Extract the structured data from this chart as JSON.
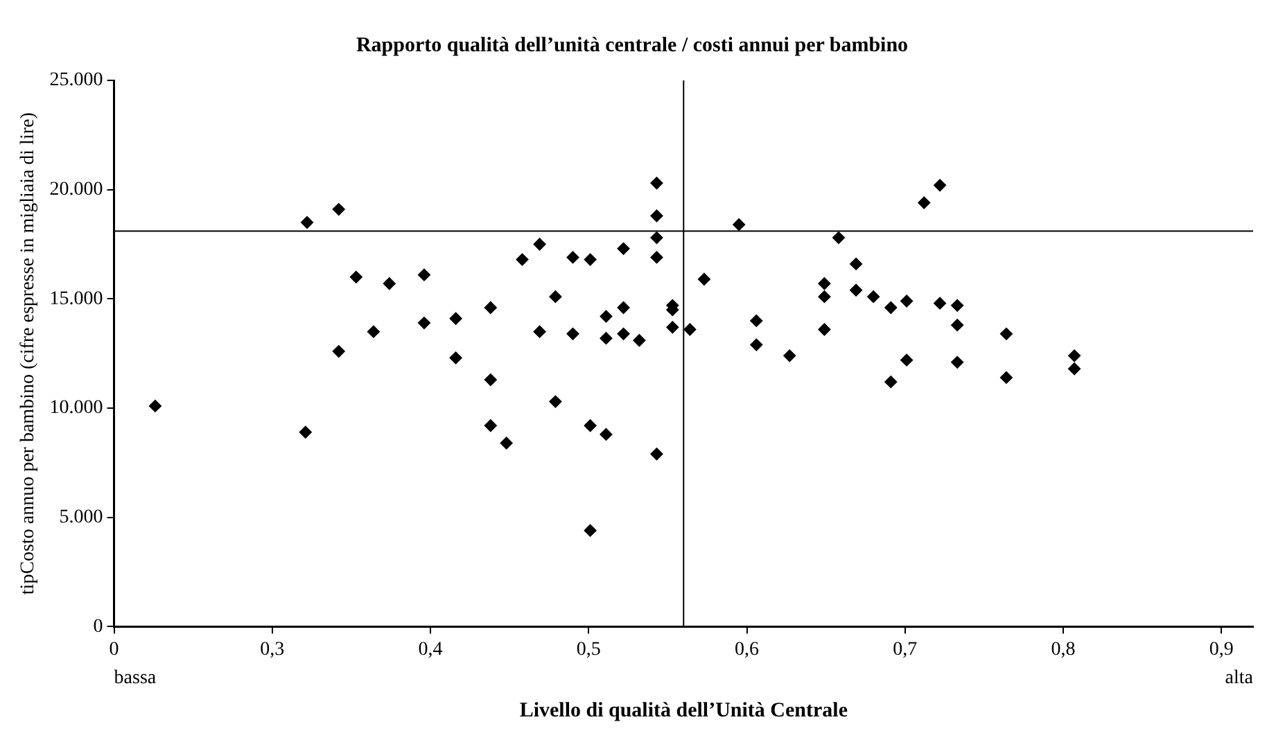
{
  "chart_data": {
    "type": "scatter",
    "title": "Rapporto qualità dell’unità centrale / costi annui per bambino",
    "xlabel": "Livello di qualità dell’Unità Centrale",
    "ylabel": "tipCosto annuo per bambino (cifre espresse in migliaia di lire)",
    "annotations": [
      "bassa",
      "alta"
    ],
    "xlim": [
      0.2,
      0.92
    ],
    "xticks": [
      {
        "value": 0.2,
        "label": "0"
      },
      {
        "value": 0.3,
        "label": "0,3"
      },
      {
        "value": 0.4,
        "label": "0,4"
      },
      {
        "value": 0.5,
        "label": "0,5"
      },
      {
        "value": 0.6,
        "label": "0,6"
      },
      {
        "value": 0.7,
        "label": "0,7"
      },
      {
        "value": 0.8,
        "label": "0,8"
      },
      {
        "value": 0.9,
        "label": "0,9"
      }
    ],
    "ylim": [
      0,
      25000
    ],
    "yticks": [
      0,
      {
        "value": 5000,
        "label": "5.000"
      },
      {
        "value": 10000,
        "label": "10.000"
      },
      {
        "value": 15000,
        "label": "15.000"
      },
      {
        "value": 20000,
        "label": "20.000"
      },
      {
        "value": 25000,
        "label": "25.000"
      }
    ],
    "grid": false,
    "legend": false,
    "marker": "diamond",
    "ref_lines": [
      {
        "axis": "y",
        "value": 18100,
        "color": "#000000"
      },
      {
        "axis": "x",
        "value": 0.56,
        "color": "#000000"
      }
    ],
    "series": [
      {
        "color": "#000000",
        "x": [
          0.226,
          0.322,
          0.342,
          0.321,
          0.342,
          0.353,
          0.364,
          0.374,
          0.396,
          0.396,
          0.416,
          0.416,
          0.438,
          0.438,
          0.438,
          0.448,
          0.458,
          0.469,
          0.469,
          0.479,
          0.479,
          0.49,
          0.49,
          0.501,
          0.501,
          0.501,
          0.511,
          0.511,
          0.511,
          0.522,
          0.522,
          0.522,
          0.532,
          0.543,
          0.543,
          0.543,
          0.543,
          0.543,
          0.553,
          0.553,
          0.553,
          0.564,
          0.573,
          0.595,
          0.606,
          0.606,
          0.627,
          0.658,
          0.649,
          0.649,
          0.649,
          0.669,
          0.669,
          0.68,
          0.691,
          0.691,
          0.701,
          0.701,
          0.712,
          0.722,
          0.722,
          0.733,
          0.733,
          0.733,
          0.764,
          0.764,
          0.807,
          0.807
        ],
        "values": [
          10100,
          18500,
          19100,
          8900,
          12600,
          16000,
          13500,
          15700,
          16100,
          13900,
          14100,
          12300,
          14600,
          11300,
          9200,
          8400,
          16800,
          17500,
          13500,
          15100,
          10300,
          16900,
          13400,
          16800,
          9200,
          4400,
          14200,
          13200,
          8800,
          17300,
          14600,
          13400,
          13100,
          20300,
          18800,
          17800,
          16900,
          7900,
          14700,
          14500,
          13700,
          13600,
          15900,
          18400,
          14000,
          12900,
          12400,
          17800,
          15700,
          15100,
          13600,
          16600,
          15400,
          15100,
          14600,
          11200,
          14900,
          12200,
          19400,
          20200,
          14800,
          14700,
          13800,
          12100,
          13400,
          11400,
          12400,
          11800
        ]
      }
    ]
  }
}
